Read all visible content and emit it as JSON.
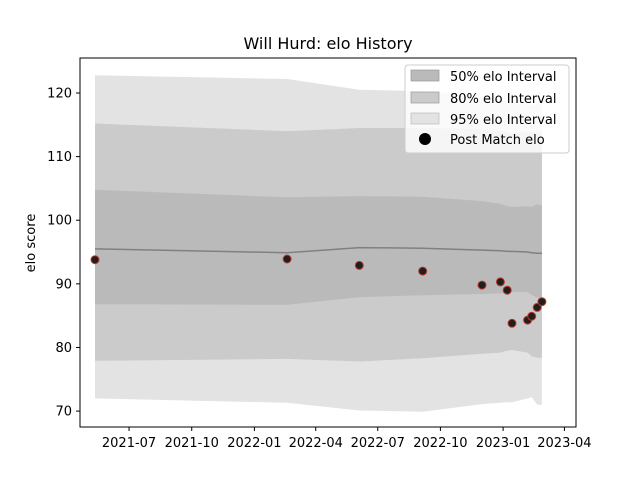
{
  "chart_data": {
    "type": "line",
    "title": "Will Hurd: elo History",
    "xlabel": "",
    "ylabel": "elo score",
    "xlim": [
      "2021-04-20",
      "2023-04-18"
    ],
    "ylim": [
      67.5,
      125.5
    ],
    "xticks": [
      "2021-07-01",
      "2021-10-01",
      "2022-01-01",
      "2022-04-01",
      "2022-07-01",
      "2022-10-01",
      "2023-01-01",
      "2023-04-01"
    ],
    "xtick_labels": [
      "2021-07",
      "2021-10",
      "2022-01",
      "2022-04",
      "2022-07",
      "2022-10",
      "2023-01",
      "2023-04"
    ],
    "yticks": [
      70,
      80,
      90,
      100,
      110,
      120
    ],
    "grid": false,
    "legend": {
      "position": "top-right",
      "entries": [
        "50% elo Interval",
        "80% elo Interval",
        "95% elo Interval",
        "Post Match elo"
      ]
    },
    "colors": {
      "band95": "#e3e3e3",
      "band80": "#cbcbcb",
      "band50": "#bababa",
      "mean_line": "#808080",
      "point_fill": "#1f1f1f",
      "point_edge": "#c0392b"
    },
    "bands": {
      "x": [
        "2021-05-12",
        "2022-02-18",
        "2022-06-04",
        "2022-09-05",
        "2022-12-01",
        "2022-12-28",
        "2023-01-07",
        "2023-01-14",
        "2023-02-06",
        "2023-02-12",
        "2023-02-20",
        "2023-02-27"
      ],
      "ci50_low": [
        86.8,
        86.7,
        87.9,
        88.2,
        88.4,
        88.5,
        88.6,
        88.7,
        88.7,
        88.3,
        87.8,
        87.7
      ],
      "ci50_high": [
        104.8,
        103.6,
        103.8,
        103.7,
        103.0,
        102.6,
        102.2,
        102.1,
        102.2,
        102.1,
        102.5,
        102.3
      ],
      "ci80_low": [
        77.9,
        78.2,
        77.8,
        78.3,
        79.0,
        79.2,
        79.5,
        79.6,
        79.2,
        78.6,
        78.4,
        78.4
      ],
      "ci80_high": [
        115.2,
        114.0,
        114.5,
        114.5,
        114.3,
        114.0,
        113.8,
        113.6,
        113.9,
        113.8,
        113.9,
        113.6
      ],
      "ci95_low": [
        72.0,
        71.3,
        70.1,
        69.9,
        71.1,
        71.3,
        71.4,
        71.4,
        72.0,
        72.2,
        71.0,
        71.0
      ],
      "ci95_high": [
        122.8,
        122.2,
        120.5,
        120.3,
        119.3,
        119.0,
        118.6,
        118.4,
        118.2,
        118.0,
        118.4,
        118.3
      ],
      "mean": [
        95.5,
        94.9,
        95.7,
        95.6,
        95.3,
        95.2,
        95.1,
        95.1,
        95.0,
        94.9,
        94.8,
        94.8
      ]
    },
    "points": {
      "x": [
        "2021-05-12",
        "2022-02-18",
        "2022-06-04",
        "2022-09-05",
        "2022-12-01",
        "2022-12-28",
        "2023-01-07",
        "2023-01-14",
        "2023-02-06",
        "2023-02-12",
        "2023-02-20",
        "2023-02-27"
      ],
      "y": [
        93.8,
        93.9,
        92.9,
        92.0,
        89.8,
        90.3,
        89.0,
        83.8,
        84.3,
        84.9,
        86.3,
        87.2
      ]
    }
  }
}
